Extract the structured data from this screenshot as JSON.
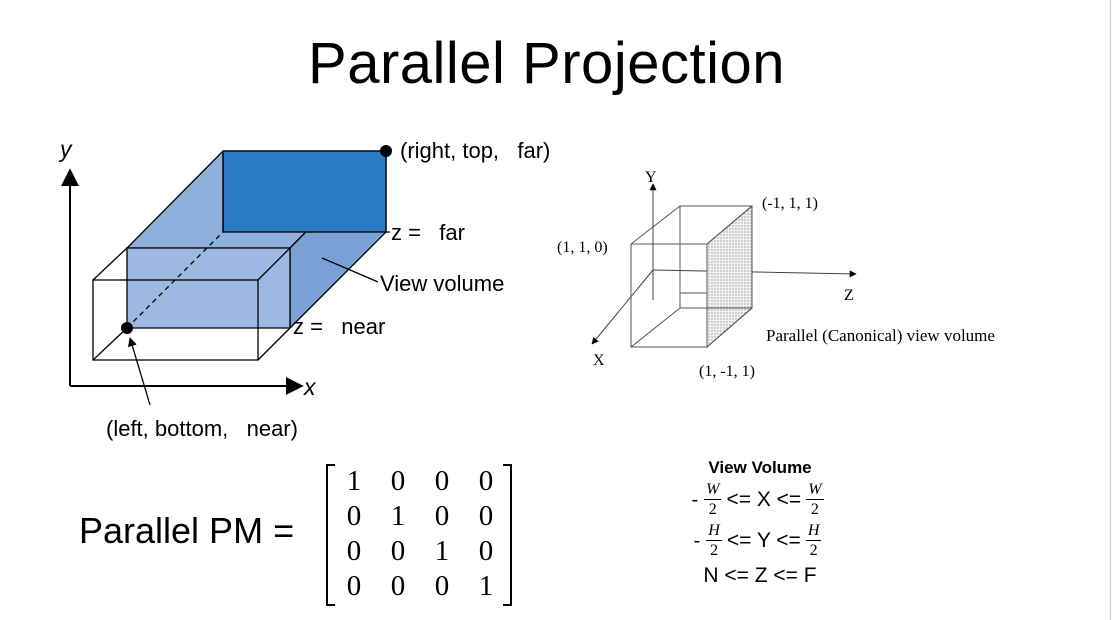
{
  "title": "Parallel Projection",
  "left_diagram": {
    "y_axis": "y",
    "x_axis": "x",
    "far_corner": "(right, top,   far)",
    "z_far": "z =   far",
    "view_volume": "View volume",
    "z_near": "z =   near",
    "near_corner": "(left, bottom,   near)",
    "colors": {
      "volume_fill": "#8fb0dd",
      "far_face": "#2a7bc3"
    }
  },
  "right_diagram": {
    "y_axis": "Y",
    "z_axis": "Z",
    "x_axis": "X",
    "point_top_right": "(-1, 1, 1)",
    "point_top_left": "(1, 1, 0)",
    "point_bottom": "(1, -1, 1)",
    "caption": "Parallel (Canonical) view volume"
  },
  "matrix": {
    "label": "Parallel PM =",
    "rows": [
      [
        "1",
        "0",
        "0",
        "0"
      ],
      [
        "0",
        "1",
        "0",
        "0"
      ],
      [
        "0",
        "0",
        "1",
        "0"
      ],
      [
        "0",
        "0",
        "0",
        "1"
      ]
    ]
  },
  "view_volume": {
    "title": "View Volume",
    "row1": {
      "sign": "-",
      "num": "W",
      "den": "2",
      "op1": "<= X <=",
      "num2": "W",
      "den2": "2"
    },
    "row2": {
      "sign": "-",
      "num": "H",
      "den": "2",
      "op1": "<= Y <=",
      "num2": "H",
      "den2": "2"
    },
    "row3": "N <= Z <= F"
  }
}
